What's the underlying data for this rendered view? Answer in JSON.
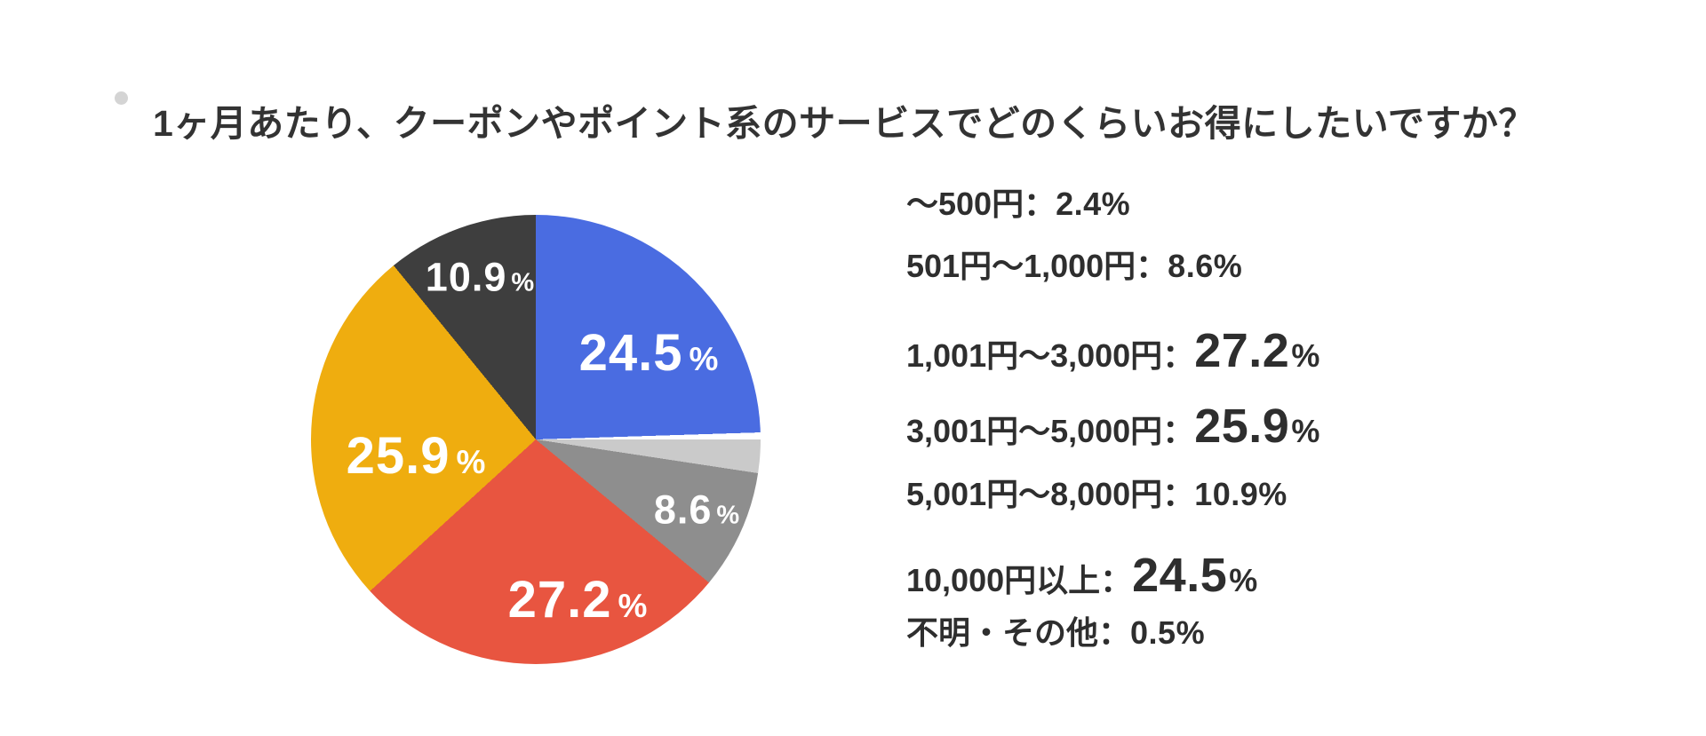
{
  "page": {
    "background": "#FFFFFF"
  },
  "title": {
    "text": "1ヶ月あたり、クーポンやポイント系のサービスでどのくらいお得にしたいですか？",
    "bullet_color": "#D4D4D4",
    "text_color": "#333333"
  },
  "chart_data": {
    "type": "pie",
    "title": "1ヶ月あたり、クーポンやポイント系のサービスでどのくらいお得にしたいですか？",
    "legend_position": "right",
    "start_angle_deg": 0,
    "direction": "clockwise",
    "slices": [
      {
        "label": "10,000円以上",
        "value": 24.5,
        "color": "#4A6CE1"
      },
      {
        "label": "不明・その他",
        "value": 0.5,
        "color": "#FFFFFF"
      },
      {
        "label": "～500円",
        "value": 2.4,
        "color": "#CACACA"
      },
      {
        "label": "501円～1,000円",
        "value": 8.6,
        "color": "#8E8E8E"
      },
      {
        "label": "1,001円～3,000円",
        "value": 27.2,
        "color": "#E85540"
      },
      {
        "label": "3,001円～5,000円",
        "value": 25.9,
        "color": "#EFAD0F"
      },
      {
        "label": "5,001円～8,000円",
        "value": 10.9,
        "color": "#3E3E3E"
      }
    ],
    "pie_value_labels": [
      {
        "slice": "10,000円以上",
        "value": "24.5",
        "unit": "%",
        "size": "large"
      },
      {
        "slice": "501円～1,000円",
        "value": "8.6",
        "unit": "%",
        "size": "small"
      },
      {
        "slice": "1,001円～3,000円",
        "value": "27.2",
        "unit": "%",
        "size": "large"
      },
      {
        "slice": "3,001円～5,000円",
        "value": "25.9",
        "unit": "%",
        "size": "large"
      },
      {
        "slice": "5,001円～8,000円",
        "value": "10.9",
        "unit": "%",
        "size": "small"
      }
    ]
  },
  "legend": {
    "separator": "：",
    "text_color": "#2E2E2E",
    "items": [
      {
        "label": "～500円",
        "value": "2.4",
        "unit": "%",
        "emphasis": false
      },
      {
        "label": "501円～1,000円",
        "value": "8.6",
        "unit": "%",
        "emphasis": false
      },
      {
        "label": "1,001円～3,000円",
        "value": "27.2",
        "unit": "%",
        "emphasis": true
      },
      {
        "label": "3,001円～5,000円",
        "value": "25.9",
        "unit": "%",
        "emphasis": true
      },
      {
        "label": "5,001円～8,000円",
        "value": "10.9",
        "unit": "%",
        "emphasis": false
      },
      {
        "label": "10,000円以上",
        "value": "24.5",
        "unit": "%",
        "emphasis": true
      },
      {
        "label": "不明・その他",
        "value": "0.5",
        "unit": "%",
        "emphasis": false
      }
    ]
  }
}
